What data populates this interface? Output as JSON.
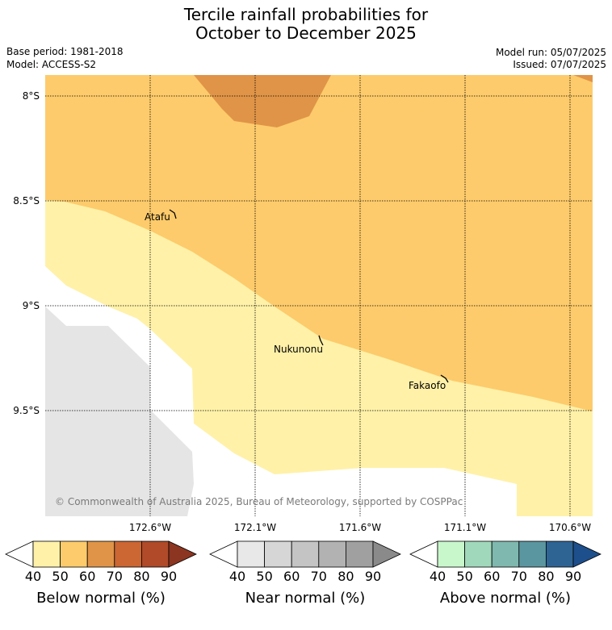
{
  "header": {
    "title_line1": "Tercile rainfall probabilities for",
    "title_line2": "October to December 2025",
    "base_period": "Base period: 1981-2018",
    "model": "Model: ACCESS-S2",
    "model_run": "Model run: 05/07/2025",
    "issued": "Issued: 07/07/2025"
  },
  "map": {
    "lat_labels": [
      "8°S",
      "8.5°S",
      "9°S",
      "9.5°S"
    ],
    "lon_labels": [
      "172.6°W",
      "172.1°W",
      "171.6°W",
      "171.1°W",
      "170.6°W"
    ],
    "places": [
      "Atafu",
      "Nukunonu",
      "Fakaofo"
    ],
    "copyright": "© Commonwealth of Australia 2025, Bureau of Meteorology, supported by COSPPac"
  },
  "legends": [
    {
      "label": "Below normal (%)",
      "ticks": [
        "40",
        "50",
        "60",
        "70",
        "80",
        "90"
      ],
      "colors": [
        "#fff1a8",
        "#fdcb6b",
        "#e09447",
        "#cc6633",
        "#b04a28",
        "#8c3520"
      ]
    },
    {
      "label": "Near normal (%)",
      "ticks": [
        "40",
        "50",
        "60",
        "70",
        "80",
        "90"
      ],
      "colors": [
        "#e8e8e8",
        "#d6d6d6",
        "#c4c4c4",
        "#b2b2b2",
        "#a0a0a0",
        "#8a8a8a"
      ]
    },
    {
      "label": "Above normal (%)",
      "ticks": [
        "40",
        "50",
        "60",
        "70",
        "80",
        "90"
      ],
      "colors": [
        "#c8f7cc",
        "#a0d8bc",
        "#7fb8ae",
        "#5a96a0",
        "#2e6494",
        "#1d4f8c"
      ]
    }
  ]
}
